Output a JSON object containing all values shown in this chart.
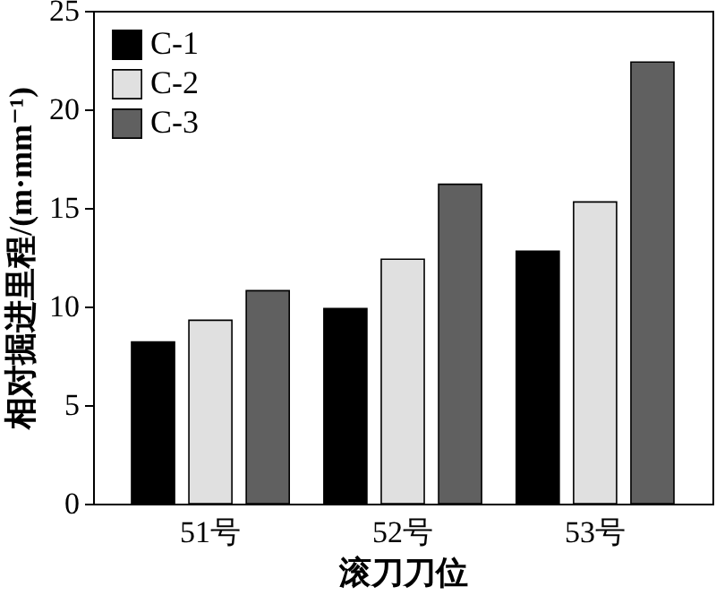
{
  "chart_data": {
    "type": "bar",
    "xlabel": "滚刀刀位",
    "ylabel": "相对掘进里程/(m·mm⁻¹)",
    "categories": [
      "51号",
      "52号",
      "53号"
    ],
    "series": [
      {
        "name": "C-1",
        "color": "#000000",
        "values": [
          8.2,
          9.9,
          12.8
        ]
      },
      {
        "name": "C-2",
        "color": "#e0e0e0",
        "values": [
          9.3,
          12.4,
          15.3
        ]
      },
      {
        "name": "C-3",
        "color": "#606060",
        "values": [
          10.8,
          16.2,
          22.4
        ]
      }
    ],
    "ylim": [
      0,
      25
    ],
    "yticks": [
      0,
      5,
      10,
      15,
      20,
      25
    ],
    "grid": false,
    "legend": "top left"
  }
}
